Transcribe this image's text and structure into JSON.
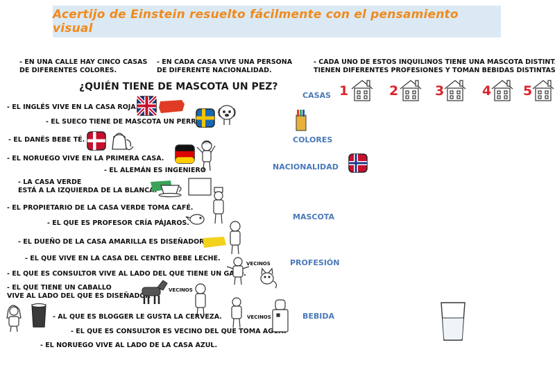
{
  "title": "Acertijo de Einstein resuelto fácilmente con el pensamiento visual",
  "intro": {
    "p1": [
      "- EN UNA CALLE HAY CINCO CASAS",
      "DE DIFERENTES COLORES."
    ],
    "p2": [
      "- EN CADA CASA VIVE UNA PERSONA",
      "DE DIFERENTE NACIONALIDAD."
    ],
    "p3": [
      "- CADA UNO DE ESTOS INQUILINOS TIENE UNA MASCOTA DISTINTA,",
      "TIENEN DIFERENTES PROFESIONES Y TOMAN BEBIDAS DISTINTAS."
    ]
  },
  "question": "¿QUIÉN TIENE DE MASCOTA UN PEZ?",
  "clues": {
    "c1": "- EL INGLÉS VIVE EN LA CASA ROJA.",
    "c2": "- EL SUECO TIENE DE MASCOTA UN PERRO.",
    "c3": "- EL DANÉS BEBE TÉ.",
    "c4": "- EL NORUEGO VIVE EN LA PRIMERA CASA.",
    "c5": "- EL ALEMÁN ES INGENIERO",
    "c6a": "- LA CASA VERDE",
    "c6b": "ESTÁ A LA IZQUIERDA DE LA BLANCA.",
    "c7": "- EL PROPIETARIO DE LA CASA VERDE TOMA CAFÉ.",
    "c8": "- EL QUE ES PROFESOR CRÍA PÁJAROS.",
    "c9": "- EL DUEÑO DE LA CASA AMARILLA ES DISEÑADOR",
    "c10": "- EL QUE VIVE EN LA CASA DEL CENTRO BEBE LECHE.",
    "c11": "- EL QUE ES CONSULTOR VIVE AL LADO DEL QUE TIENE UN GATO.",
    "c12a": "- EL QUE TIENE UN CABALLO",
    "c12b": "VIVE AL LADO DEL QUE ES DISEÑADOR",
    "c13": "- AL QUE ES BLOGGER LE GUSTA LA CERVEZA.",
    "c14": "- EL QUE ES CONSULTOR ES VECINO DEL QUE TOMA AGUA.",
    "c15": "- EL NORUEGO VIVE AL LADO DE LA CASA AZUL."
  },
  "vecinos": [
    "VECINOS",
    "VECINOS",
    "VECINOS"
  ],
  "categories": {
    "casas": "CASAS",
    "colores": "COLORES",
    "nacionalidad": "NACIONALIDAD",
    "mascota": "MASCOTA",
    "profesion": "PROFESIÓN",
    "bebida": "BEBIDA"
  },
  "house_numbers": [
    "1",
    "2",
    "3",
    "4",
    "5"
  ],
  "colors": {
    "title": "#f08a1c",
    "banner_bg": "#dbe9f4",
    "category": "#4a78b8",
    "house_number": "#d8262c",
    "red_swatch": "#e03b24",
    "green_swatch": "#3aa35a",
    "yellow_swatch": "#f2d21b"
  },
  "icons": [
    "uk-flag-icon",
    "sweden-flag-icon",
    "denmark-flag-icon",
    "germany-flag-icon",
    "norway-flag-icon",
    "dog-icon",
    "teapot-icon",
    "coffee-cup-icon",
    "bird-icon",
    "cat-icon",
    "horse-icon",
    "beer-glass-icon",
    "water-cooler-icon",
    "milk-glass-icon",
    "house-icon",
    "crayons-icon",
    "person-icon"
  ]
}
